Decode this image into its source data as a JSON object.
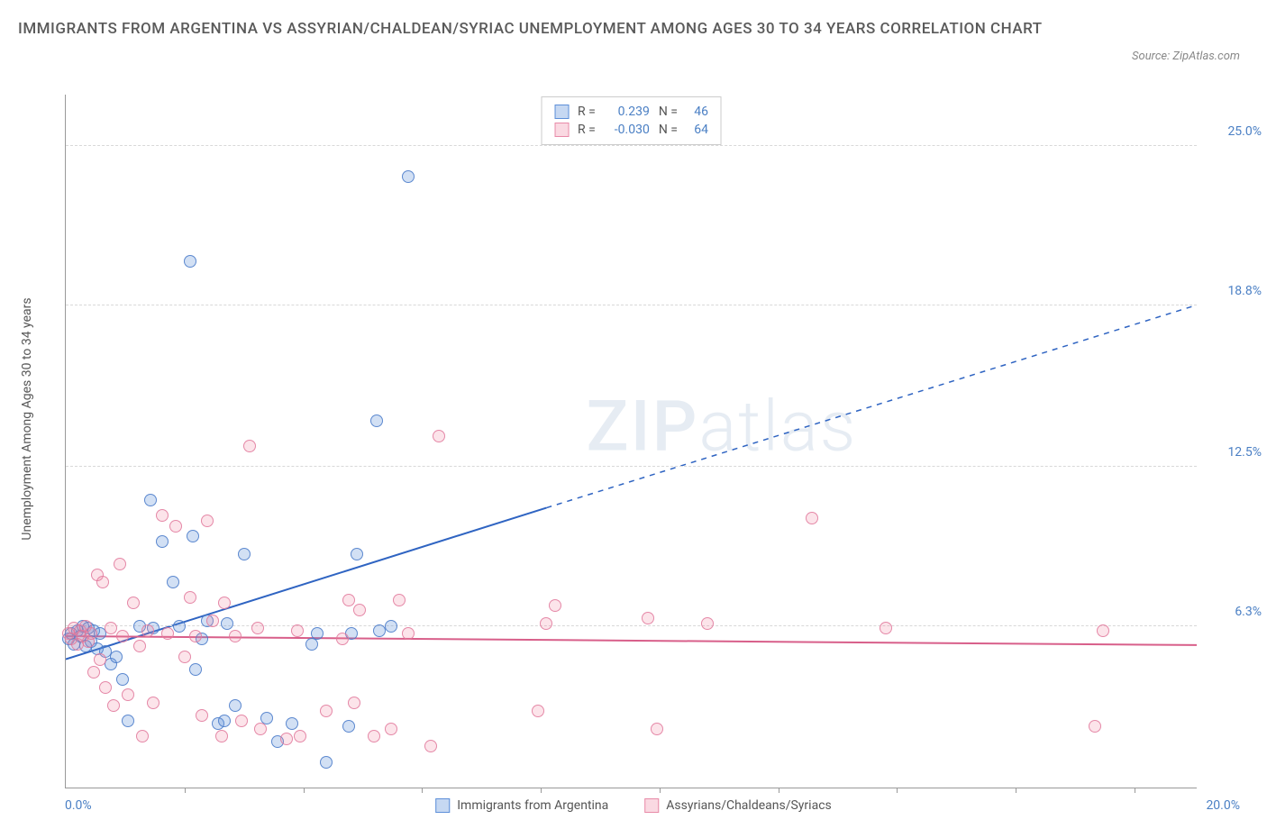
{
  "title": "IMMIGRANTS FROM ARGENTINA VS ASSYRIAN/CHALDEAN/SYRIAC UNEMPLOYMENT AMONG AGES 30 TO 34 YEARS CORRELATION CHART",
  "source": "Source: ZipAtlas.com",
  "watermark": {
    "strong": "ZIP",
    "light": "atlas"
  },
  "ylabel": "Unemployment Among Ages 30 to 34 years",
  "chart": {
    "type": "scatter",
    "xlim": [
      0,
      20
    ],
    "ylim": [
      0,
      27
    ],
    "x_ticks_minor": [
      2.1,
      4.2,
      6.3,
      8.4,
      10.5,
      12.6,
      14.7,
      16.8,
      18.9
    ],
    "x_tick_labels": {
      "left": "0.0%",
      "right": "20.0%"
    },
    "y_ticks": [
      {
        "v": 6.3,
        "label": "6.3%"
      },
      {
        "v": 12.5,
        "label": "12.5%"
      },
      {
        "v": 18.8,
        "label": "18.8%"
      },
      {
        "v": 25.0,
        "label": "25.0%"
      }
    ],
    "grid_color": "#d8d8d8",
    "background_color": "#ffffff",
    "marker_radius": 7,
    "series": [
      {
        "name": "Immigrants from Argentina",
        "color": "#5d8fd9",
        "fill": "rgba(93,143,217,0.28)",
        "R": "0.239",
        "N": "46",
        "trend": {
          "x1": 0,
          "y1": 5.0,
          "x2_solid": 8.5,
          "y2_solid": 10.9,
          "x2": 20,
          "y2": 18.8,
          "stroke": "#2f64c2",
          "stroke_width": 2
        },
        "points": [
          [
            0.05,
            5.8
          ],
          [
            0.1,
            6.0
          ],
          [
            0.15,
            5.6
          ],
          [
            0.2,
            6.1
          ],
          [
            0.25,
            5.9
          ],
          [
            0.3,
            6.3
          ],
          [
            0.35,
            5.5
          ],
          [
            0.4,
            6.2
          ],
          [
            0.45,
            5.7
          ],
          [
            0.5,
            6.1
          ],
          [
            0.55,
            5.4
          ],
          [
            0.6,
            6.0
          ],
          [
            0.7,
            5.3
          ],
          [
            0.8,
            4.8
          ],
          [
            0.9,
            5.1
          ],
          [
            1.0,
            4.2
          ],
          [
            1.1,
            2.6
          ],
          [
            1.3,
            6.3
          ],
          [
            1.5,
            11.2
          ],
          [
            1.55,
            6.2
          ],
          [
            1.7,
            9.6
          ],
          [
            1.9,
            8.0
          ],
          [
            2.0,
            6.3
          ],
          [
            2.2,
            20.5
          ],
          [
            2.25,
            9.8
          ],
          [
            2.3,
            4.6
          ],
          [
            2.4,
            5.8
          ],
          [
            2.5,
            6.5
          ],
          [
            2.7,
            2.5
          ],
          [
            2.8,
            2.6
          ],
          [
            2.85,
            6.4
          ],
          [
            3.0,
            3.2
          ],
          [
            3.15,
            9.1
          ],
          [
            3.55,
            2.7
          ],
          [
            3.75,
            1.8
          ],
          [
            4.0,
            2.5
          ],
          [
            4.35,
            5.6
          ],
          [
            4.45,
            6.0
          ],
          [
            4.6,
            1.0
          ],
          [
            5.0,
            2.4
          ],
          [
            5.05,
            6.0
          ],
          [
            5.15,
            9.1
          ],
          [
            5.5,
            14.3
          ],
          [
            5.55,
            6.1
          ],
          [
            5.75,
            6.3
          ],
          [
            6.05,
            23.8
          ]
        ]
      },
      {
        "name": "Assyrians/Chaldeans/Syriacs",
        "color": "#e88aa8",
        "fill": "rgba(240,130,160,0.22)",
        "R": "-0.030",
        "N": "64",
        "trend": {
          "x1": 0,
          "y1": 5.9,
          "x2_solid": 20,
          "y2_solid": 5.55,
          "x2": 20,
          "y2": 5.55,
          "stroke": "#d85f8a",
          "stroke_width": 2
        },
        "points": [
          [
            0.05,
            6.0
          ],
          [
            0.1,
            5.8
          ],
          [
            0.15,
            6.2
          ],
          [
            0.2,
            5.6
          ],
          [
            0.25,
            6.1
          ],
          [
            0.3,
            5.9
          ],
          [
            0.35,
            6.3
          ],
          [
            0.4,
            5.7
          ],
          [
            0.45,
            6.0
          ],
          [
            0.5,
            4.5
          ],
          [
            0.55,
            8.3
          ],
          [
            0.6,
            5.0
          ],
          [
            0.65,
            8.0
          ],
          [
            0.7,
            3.9
          ],
          [
            0.8,
            6.2
          ],
          [
            0.85,
            3.2
          ],
          [
            0.95,
            8.7
          ],
          [
            1.0,
            5.9
          ],
          [
            1.1,
            3.6
          ],
          [
            1.2,
            7.2
          ],
          [
            1.3,
            5.5
          ],
          [
            1.35,
            2.0
          ],
          [
            1.45,
            6.1
          ],
          [
            1.55,
            3.3
          ],
          [
            1.7,
            10.6
          ],
          [
            1.8,
            6.0
          ],
          [
            1.95,
            10.2
          ],
          [
            2.1,
            5.1
          ],
          [
            2.2,
            7.4
          ],
          [
            2.3,
            5.9
          ],
          [
            2.4,
            2.8
          ],
          [
            2.5,
            10.4
          ],
          [
            2.6,
            6.5
          ],
          [
            2.75,
            2.0
          ],
          [
            2.8,
            7.2
          ],
          [
            3.0,
            5.9
          ],
          [
            3.1,
            2.6
          ],
          [
            3.25,
            13.3
          ],
          [
            3.4,
            6.2
          ],
          [
            3.45,
            2.3
          ],
          [
            3.9,
            1.9
          ],
          [
            4.1,
            6.1
          ],
          [
            4.15,
            2.0
          ],
          [
            4.6,
            3.0
          ],
          [
            4.9,
            5.8
          ],
          [
            5.0,
            7.3
          ],
          [
            5.1,
            3.3
          ],
          [
            5.2,
            6.9
          ],
          [
            5.45,
            2.0
          ],
          [
            5.75,
            2.3
          ],
          [
            5.9,
            7.3
          ],
          [
            6.05,
            6.0
          ],
          [
            6.45,
            1.6
          ],
          [
            6.6,
            13.7
          ],
          [
            8.35,
            3.0
          ],
          [
            8.5,
            6.4
          ],
          [
            8.65,
            7.1
          ],
          [
            10.3,
            6.6
          ],
          [
            10.45,
            2.3
          ],
          [
            11.35,
            6.4
          ],
          [
            13.2,
            10.5
          ],
          [
            14.5,
            6.2
          ],
          [
            18.2,
            2.4
          ],
          [
            18.35,
            6.1
          ]
        ]
      }
    ]
  },
  "bottom_legend": [
    {
      "swatch": "blue",
      "label": "Immigrants from Argentina"
    },
    {
      "swatch": "pink",
      "label": "Assyrians/Chaldeans/Syriacs"
    }
  ]
}
